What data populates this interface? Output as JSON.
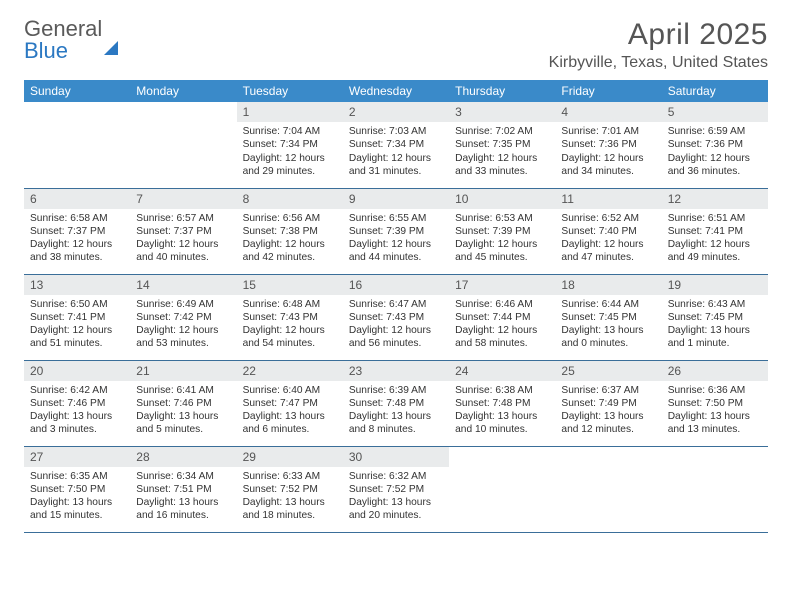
{
  "logo": {
    "word1": "General",
    "word2": "Blue"
  },
  "title": "April 2025",
  "location": "Kirbyville, Texas, United States",
  "style": {
    "header_bg": "#3a8ac9",
    "header_text": "#ffffff",
    "daynum_bg": "#e9ebec",
    "cell_border": "#3a6e99",
    "title_color": "#555555",
    "text_color": "#333333",
    "logo_gray": "#5a5a5a",
    "logo_blue": "#2b78c2",
    "title_fontsize": 30,
    "location_fontsize": 16,
    "th_fontsize": 12,
    "cell_fontsize": 10.2
  },
  "weekdays": [
    "Sunday",
    "Monday",
    "Tuesday",
    "Wednesday",
    "Thursday",
    "Friday",
    "Saturday"
  ],
  "weeks": [
    [
      {
        "empty": true
      },
      {
        "empty": true
      },
      {
        "day": "1",
        "sunrise": "Sunrise: 7:04 AM",
        "sunset": "Sunset: 7:34 PM",
        "daylight1": "Daylight: 12 hours",
        "daylight2": "and 29 minutes."
      },
      {
        "day": "2",
        "sunrise": "Sunrise: 7:03 AM",
        "sunset": "Sunset: 7:34 PM",
        "daylight1": "Daylight: 12 hours",
        "daylight2": "and 31 minutes."
      },
      {
        "day": "3",
        "sunrise": "Sunrise: 7:02 AM",
        "sunset": "Sunset: 7:35 PM",
        "daylight1": "Daylight: 12 hours",
        "daylight2": "and 33 minutes."
      },
      {
        "day": "4",
        "sunrise": "Sunrise: 7:01 AM",
        "sunset": "Sunset: 7:36 PM",
        "daylight1": "Daylight: 12 hours",
        "daylight2": "and 34 minutes."
      },
      {
        "day": "5",
        "sunrise": "Sunrise: 6:59 AM",
        "sunset": "Sunset: 7:36 PM",
        "daylight1": "Daylight: 12 hours",
        "daylight2": "and 36 minutes."
      }
    ],
    [
      {
        "day": "6",
        "sunrise": "Sunrise: 6:58 AM",
        "sunset": "Sunset: 7:37 PM",
        "daylight1": "Daylight: 12 hours",
        "daylight2": "and 38 minutes."
      },
      {
        "day": "7",
        "sunrise": "Sunrise: 6:57 AM",
        "sunset": "Sunset: 7:37 PM",
        "daylight1": "Daylight: 12 hours",
        "daylight2": "and 40 minutes."
      },
      {
        "day": "8",
        "sunrise": "Sunrise: 6:56 AM",
        "sunset": "Sunset: 7:38 PM",
        "daylight1": "Daylight: 12 hours",
        "daylight2": "and 42 minutes."
      },
      {
        "day": "9",
        "sunrise": "Sunrise: 6:55 AM",
        "sunset": "Sunset: 7:39 PM",
        "daylight1": "Daylight: 12 hours",
        "daylight2": "and 44 minutes."
      },
      {
        "day": "10",
        "sunrise": "Sunrise: 6:53 AM",
        "sunset": "Sunset: 7:39 PM",
        "daylight1": "Daylight: 12 hours",
        "daylight2": "and 45 minutes."
      },
      {
        "day": "11",
        "sunrise": "Sunrise: 6:52 AM",
        "sunset": "Sunset: 7:40 PM",
        "daylight1": "Daylight: 12 hours",
        "daylight2": "and 47 minutes."
      },
      {
        "day": "12",
        "sunrise": "Sunrise: 6:51 AM",
        "sunset": "Sunset: 7:41 PM",
        "daylight1": "Daylight: 12 hours",
        "daylight2": "and 49 minutes."
      }
    ],
    [
      {
        "day": "13",
        "sunrise": "Sunrise: 6:50 AM",
        "sunset": "Sunset: 7:41 PM",
        "daylight1": "Daylight: 12 hours",
        "daylight2": "and 51 minutes."
      },
      {
        "day": "14",
        "sunrise": "Sunrise: 6:49 AM",
        "sunset": "Sunset: 7:42 PM",
        "daylight1": "Daylight: 12 hours",
        "daylight2": "and 53 minutes."
      },
      {
        "day": "15",
        "sunrise": "Sunrise: 6:48 AM",
        "sunset": "Sunset: 7:43 PM",
        "daylight1": "Daylight: 12 hours",
        "daylight2": "and 54 minutes."
      },
      {
        "day": "16",
        "sunrise": "Sunrise: 6:47 AM",
        "sunset": "Sunset: 7:43 PM",
        "daylight1": "Daylight: 12 hours",
        "daylight2": "and 56 minutes."
      },
      {
        "day": "17",
        "sunrise": "Sunrise: 6:46 AM",
        "sunset": "Sunset: 7:44 PM",
        "daylight1": "Daylight: 12 hours",
        "daylight2": "and 58 minutes."
      },
      {
        "day": "18",
        "sunrise": "Sunrise: 6:44 AM",
        "sunset": "Sunset: 7:45 PM",
        "daylight1": "Daylight: 13 hours",
        "daylight2": "and 0 minutes."
      },
      {
        "day": "19",
        "sunrise": "Sunrise: 6:43 AM",
        "sunset": "Sunset: 7:45 PM",
        "daylight1": "Daylight: 13 hours",
        "daylight2": "and 1 minute."
      }
    ],
    [
      {
        "day": "20",
        "sunrise": "Sunrise: 6:42 AM",
        "sunset": "Sunset: 7:46 PM",
        "daylight1": "Daylight: 13 hours",
        "daylight2": "and 3 minutes."
      },
      {
        "day": "21",
        "sunrise": "Sunrise: 6:41 AM",
        "sunset": "Sunset: 7:46 PM",
        "daylight1": "Daylight: 13 hours",
        "daylight2": "and 5 minutes."
      },
      {
        "day": "22",
        "sunrise": "Sunrise: 6:40 AM",
        "sunset": "Sunset: 7:47 PM",
        "daylight1": "Daylight: 13 hours",
        "daylight2": "and 6 minutes."
      },
      {
        "day": "23",
        "sunrise": "Sunrise: 6:39 AM",
        "sunset": "Sunset: 7:48 PM",
        "daylight1": "Daylight: 13 hours",
        "daylight2": "and 8 minutes."
      },
      {
        "day": "24",
        "sunrise": "Sunrise: 6:38 AM",
        "sunset": "Sunset: 7:48 PM",
        "daylight1": "Daylight: 13 hours",
        "daylight2": "and 10 minutes."
      },
      {
        "day": "25",
        "sunrise": "Sunrise: 6:37 AM",
        "sunset": "Sunset: 7:49 PM",
        "daylight1": "Daylight: 13 hours",
        "daylight2": "and 12 minutes."
      },
      {
        "day": "26",
        "sunrise": "Sunrise: 6:36 AM",
        "sunset": "Sunset: 7:50 PM",
        "daylight1": "Daylight: 13 hours",
        "daylight2": "and 13 minutes."
      }
    ],
    [
      {
        "day": "27",
        "sunrise": "Sunrise: 6:35 AM",
        "sunset": "Sunset: 7:50 PM",
        "daylight1": "Daylight: 13 hours",
        "daylight2": "and 15 minutes."
      },
      {
        "day": "28",
        "sunrise": "Sunrise: 6:34 AM",
        "sunset": "Sunset: 7:51 PM",
        "daylight1": "Daylight: 13 hours",
        "daylight2": "and 16 minutes."
      },
      {
        "day": "29",
        "sunrise": "Sunrise: 6:33 AM",
        "sunset": "Sunset: 7:52 PM",
        "daylight1": "Daylight: 13 hours",
        "daylight2": "and 18 minutes."
      },
      {
        "day": "30",
        "sunrise": "Sunrise: 6:32 AM",
        "sunset": "Sunset: 7:52 PM",
        "daylight1": "Daylight: 13 hours",
        "daylight2": "and 20 minutes."
      },
      {
        "empty": true
      },
      {
        "empty": true
      },
      {
        "empty": true
      }
    ]
  ]
}
